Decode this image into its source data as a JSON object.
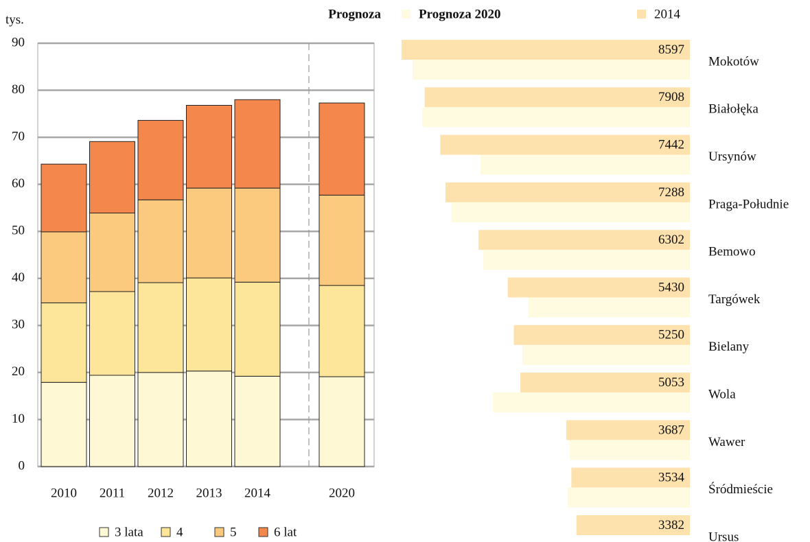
{
  "chart_data": [
    {
      "type": "stacked_bar",
      "y_label": "tys.",
      "categories": [
        "2010",
        "2011",
        "2012",
        "2013",
        "2014",
        "2020"
      ],
      "series": [
        {
          "name": "3 lata",
          "color": "#fff8d4",
          "values": [
            17.9,
            19.4,
            20.0,
            20.3,
            19.2,
            19.1
          ]
        },
        {
          "name": "4",
          "color": "#fde59a",
          "values": [
            16.9,
            17.8,
            19.1,
            19.8,
            20.0,
            19.4
          ]
        },
        {
          "name": "5",
          "color": "#fcca7e",
          "values": [
            15.1,
            16.7,
            17.6,
            19.1,
            20.0,
            19.2
          ]
        },
        {
          "name": "6 lat",
          "color": "#f4874b",
          "values": [
            14.4,
            15.2,
            16.9,
            17.6,
            18.8,
            19.6
          ]
        }
      ],
      "ylim": [
        0,
        90
      ],
      "yticks": [
        0,
        10,
        20,
        30,
        40,
        50,
        60,
        70,
        80,
        90
      ],
      "grid": true
    },
    {
      "type": "hbar",
      "header": "Prognoza",
      "categories": [
        "Mokotów",
        "Białołęka",
        "Ursynów",
        "Praga-Południe",
        "Bemowo",
        "Targówek",
        "Bielany",
        "Wola",
        "Wawer",
        "Śródmieście",
        "Ursus"
      ],
      "series": [
        {
          "name": "Prognoza 2020",
          "color": "#fefbe0",
          "values": [
            8270,
            7983,
            6243,
            7103,
            6162,
            4810,
            4995,
            5875,
            3582,
            3644,
            null
          ]
        },
        {
          "name": "2014",
          "color": "#fde2ad",
          "values": [
            8597,
            7908,
            7442,
            7288,
            6302,
            5430,
            5250,
            5053,
            3687,
            3534,
            3382
          ]
        }
      ]
    }
  ]
}
